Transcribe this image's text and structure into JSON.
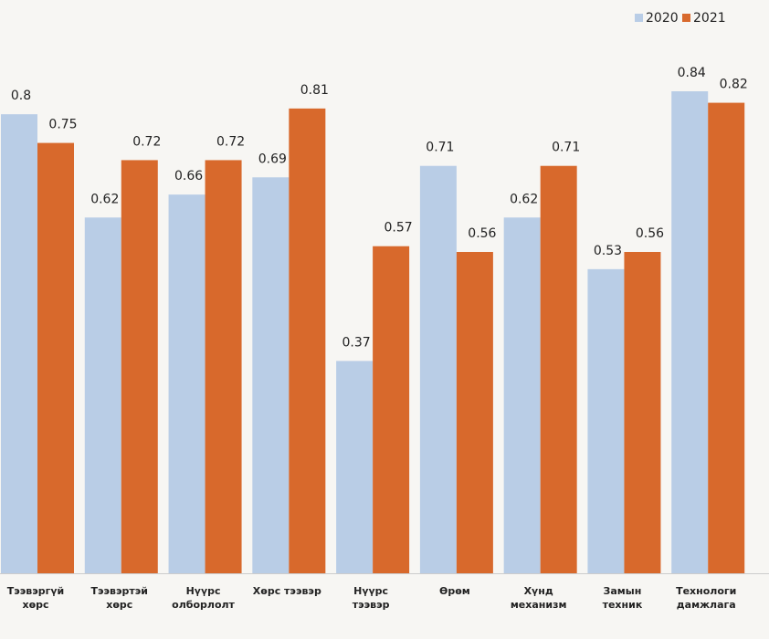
{
  "chart_data": {
    "type": "bar",
    "categories": [
      "Тээвэргүй\nхөрс",
      "Тээвэртэй\nхөрс",
      "Нүүрс\nолборлолт",
      "Хөрс тээвэр",
      "Нүүрс\nтээвэр",
      "Өрөм",
      "Хүнд\nмеханизм",
      "Замын\nтехник",
      "Технологи\nдамжлага"
    ],
    "series": [
      {
        "name": "2020",
        "color": "#b9cde6",
        "values": [
          0.8,
          0.62,
          0.66,
          0.69,
          0.37,
          0.71,
          0.62,
          0.53,
          0.84
        ]
      },
      {
        "name": "2021",
        "color": "#d8692c",
        "values": [
          0.75,
          0.72,
          0.72,
          0.81,
          0.57,
          0.56,
          0.71,
          0.56,
          0.82
        ]
      }
    ],
    "legend": "top-right"
  }
}
